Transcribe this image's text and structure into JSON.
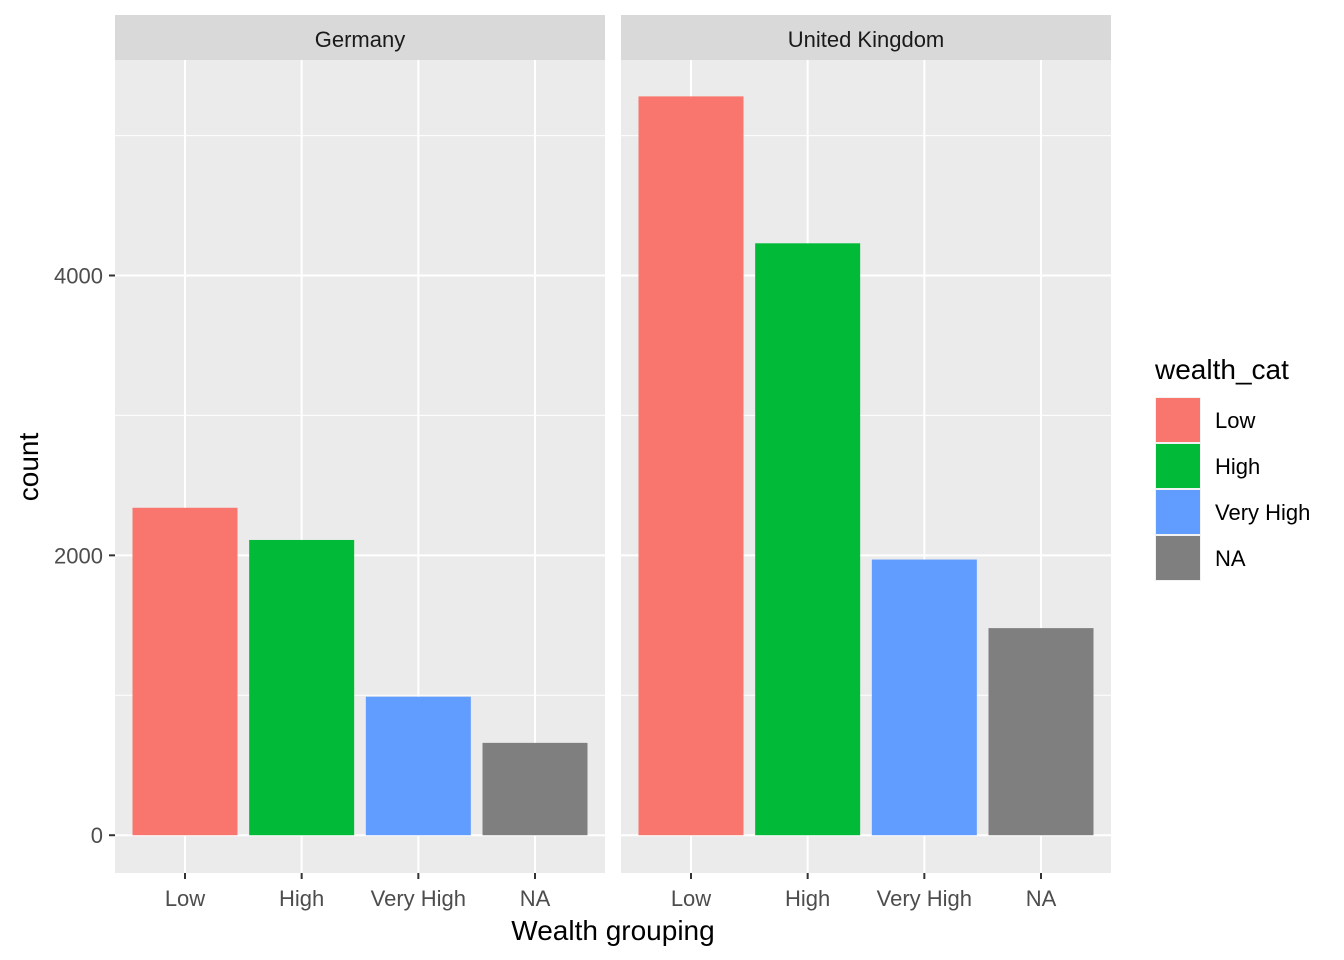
{
  "chart_data": {
    "type": "bar",
    "facet_by": "country",
    "facets": [
      {
        "name": "Germany",
        "values": [
          2340,
          2110,
          990,
          660
        ]
      },
      {
        "name": "United Kingdom",
        "values": [
          5280,
          4230,
          1970,
          1480
        ]
      }
    ],
    "categories": [
      "Low",
      "High",
      "Very High",
      "NA"
    ],
    "xlabel": "Wealth grouping",
    "ylabel": "count",
    "ylim": [
      -270,
      5540
    ],
    "yticks": [
      0,
      2000,
      4000
    ],
    "legend": {
      "title": "wealth_cat",
      "position": "right",
      "entries": [
        {
          "label": "Low",
          "color": "#F8766D"
        },
        {
          "label": "High",
          "color": "#00BA38"
        },
        {
          "label": "Very High",
          "color": "#619CFF"
        },
        {
          "label": "NA",
          "color": "#7F7F7F"
        }
      ]
    },
    "grid": true,
    "panel_background": "#EBEBEB",
    "strip_background": "#D9D9D9"
  }
}
